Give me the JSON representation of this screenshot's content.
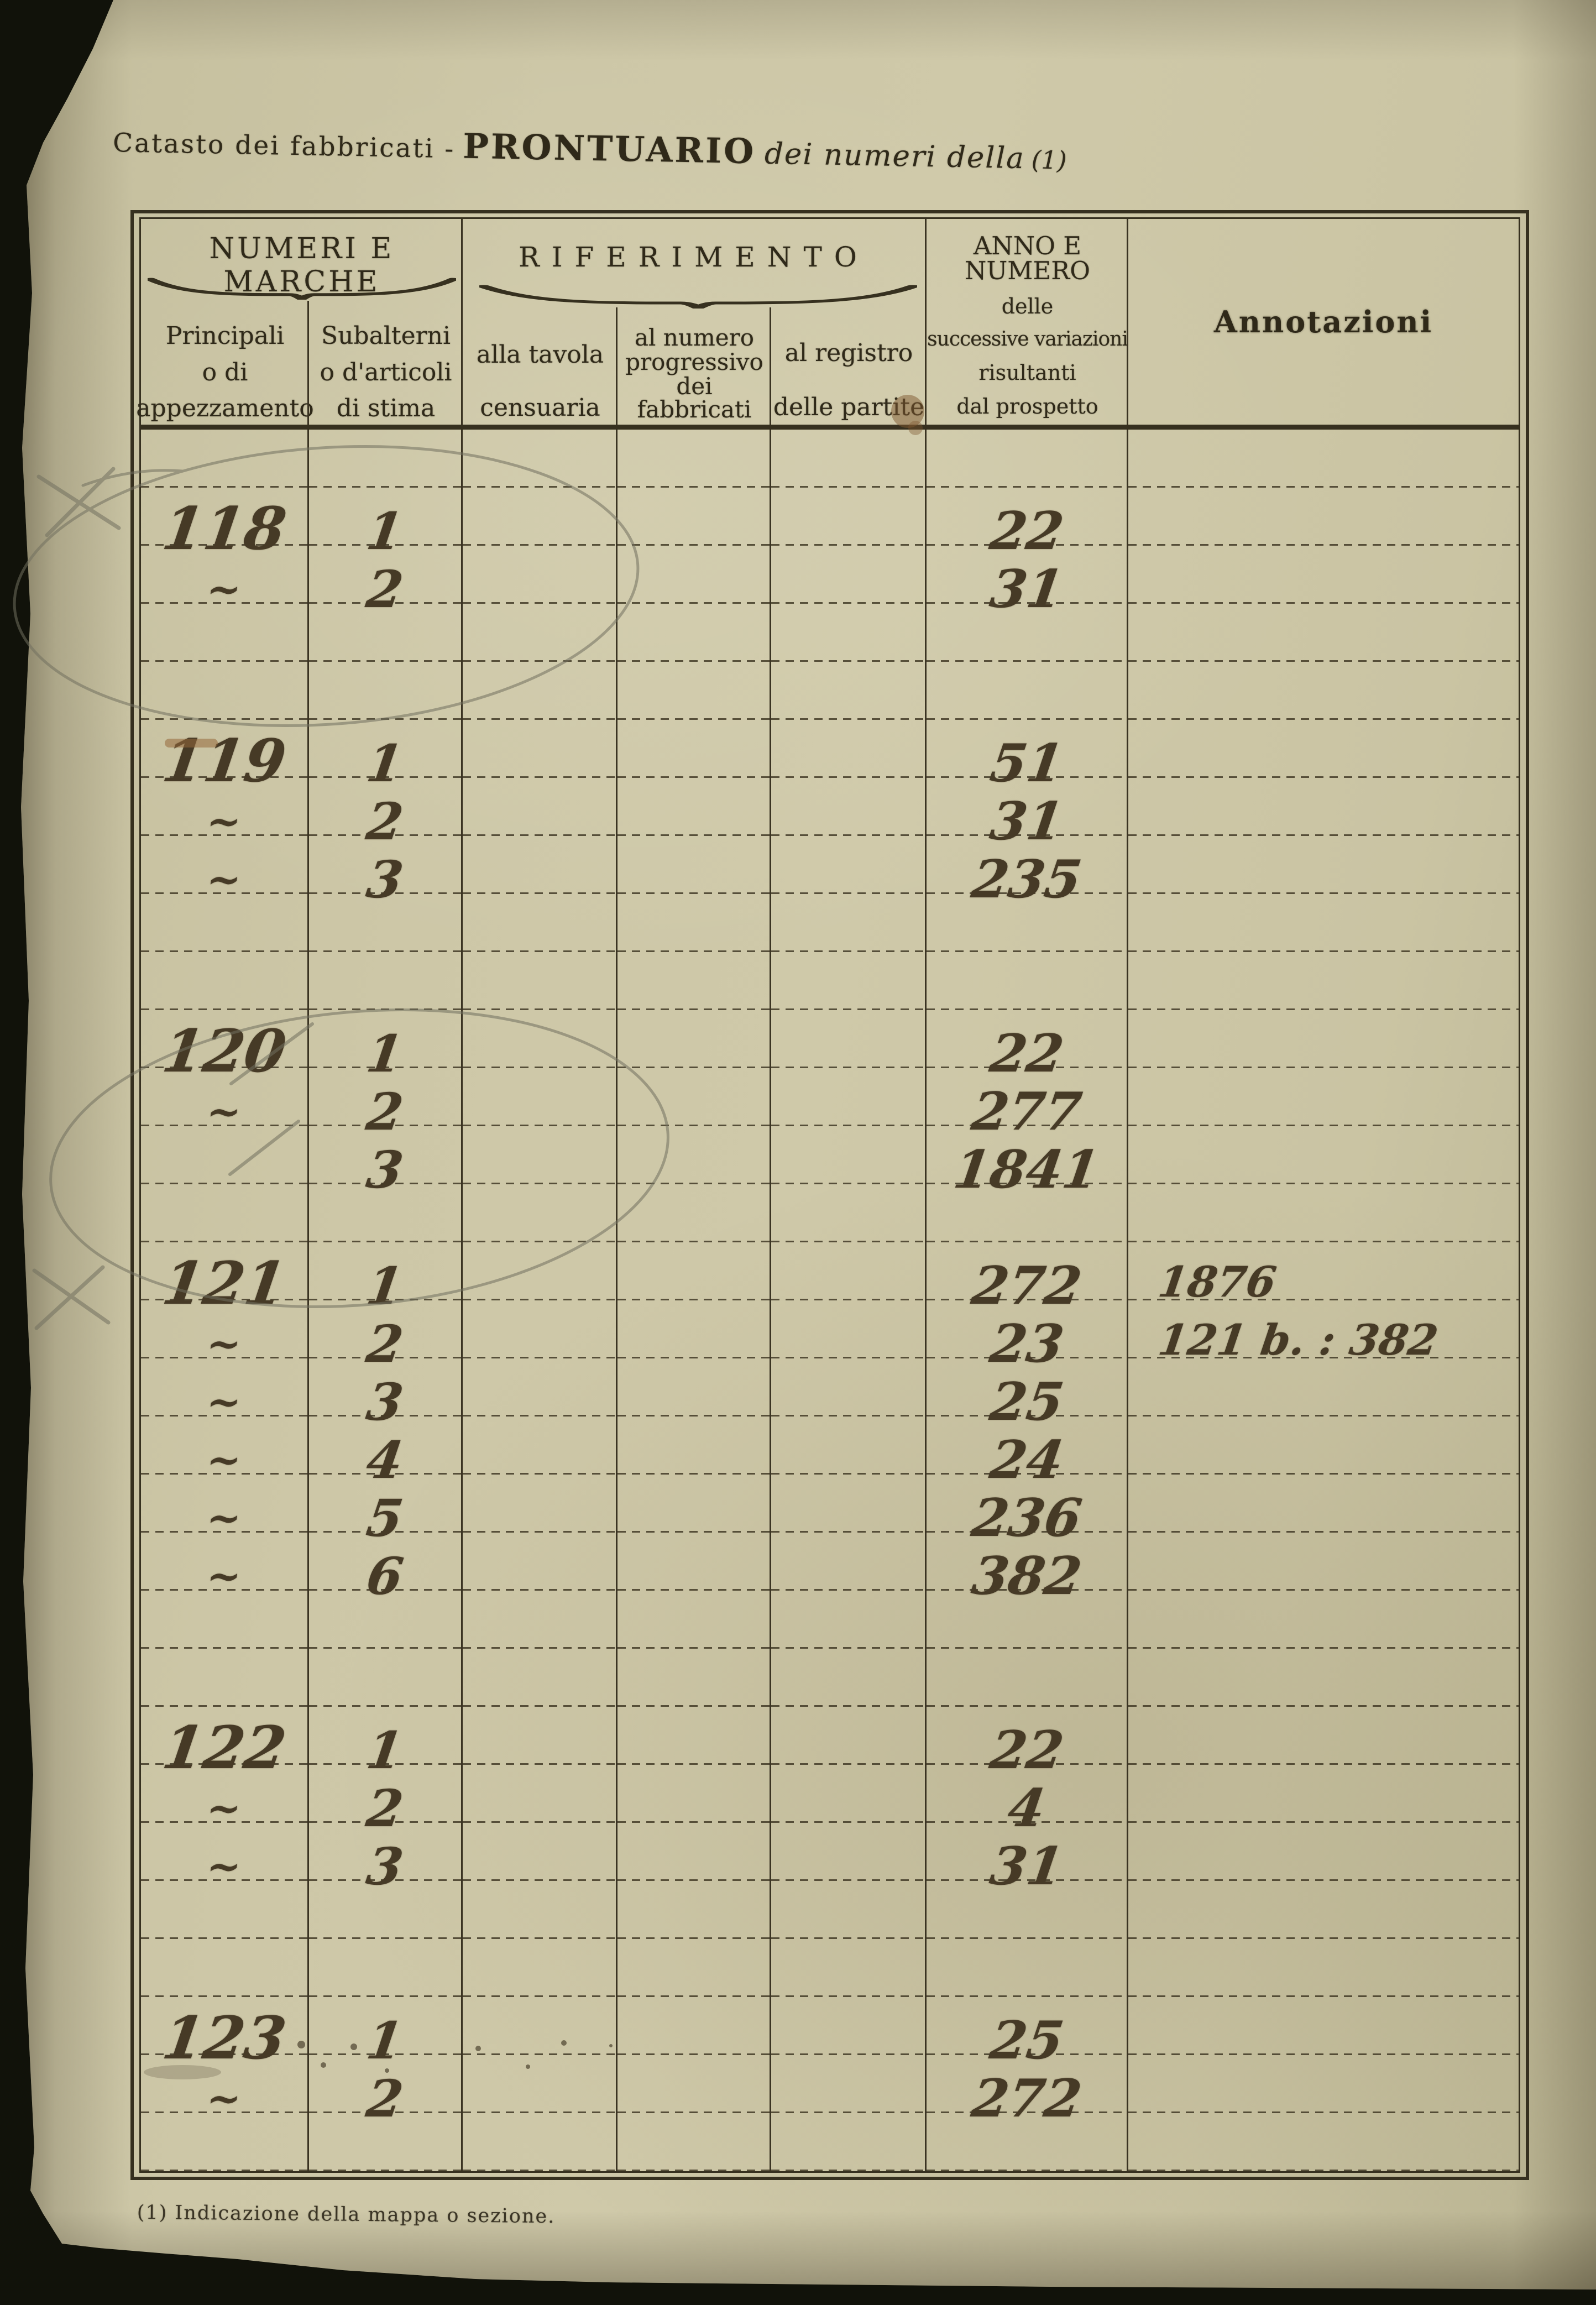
{
  "page": {
    "title": {
      "prefix": "Catasto dei fabbricati -",
      "main": "PRONTUARIO",
      "italic": "dei numeri della",
      "note_ref": "(1)"
    },
    "footnote": "(1) Indicazione della mappa o sezione."
  },
  "colors": {
    "paper": "#cfc9a9",
    "ink_print": "#2f2919",
    "ink_hand": "#463a26",
    "pencil": "#72705f",
    "background": "#11120a"
  },
  "table": {
    "group_headers": {
      "numeri": "NUMERI E MARCHE",
      "riferimento": "RIFERIMENTO"
    },
    "subheaders": {
      "principali": [
        "Principali",
        "o di",
        "appezzamento"
      ],
      "subalterni": [
        "Subalterni",
        "o d'articoli",
        "di stima"
      ],
      "tavola": [
        "alla tavola",
        "censuaria"
      ],
      "numero": [
        "al numero",
        "progressivo",
        "dei fabbricati"
      ],
      "registro": [
        "al registro",
        "delle partite"
      ]
    },
    "anno_header": [
      "ANNO E NUMERO",
      "delle",
      "successive variazioni",
      "risultanti",
      "dal prospetto"
    ],
    "annotazioni_header": "Annotazioni",
    "rows": [
      {},
      {
        "principale": "118",
        "subalterno": "1",
        "anno": "22"
      },
      {
        "principale": "~",
        "subalterno": "2",
        "anno": "31"
      },
      {},
      {},
      {
        "principale": "119",
        "subalterno": "1",
        "anno": "51"
      },
      {
        "principale": "~",
        "subalterno": "2",
        "anno": "31"
      },
      {
        "principale": "~",
        "subalterno": "3",
        "anno": "235"
      },
      {},
      {},
      {
        "principale": "120",
        "subalterno": "1",
        "anno": "22"
      },
      {
        "principale": "~",
        "subalterno": "2",
        "anno": "277"
      },
      {
        "subalterno": "3",
        "anno": "1841"
      },
      {},
      {
        "principale": "121",
        "subalterno": "1",
        "anno": "272",
        "annotazione": "1876"
      },
      {
        "principale": "~",
        "subalterno": "2",
        "anno": "23",
        "annotazione": "121 b. : 382"
      },
      {
        "principale": "~",
        "subalterno": "3",
        "anno": "25"
      },
      {
        "principale": "~",
        "subalterno": "4",
        "anno": "24"
      },
      {
        "principale": "~",
        "subalterno": "5",
        "anno": "236"
      },
      {
        "principale": "~",
        "subalterno": "6",
        "anno": "382"
      },
      {},
      {},
      {
        "principale": "122",
        "subalterno": "1",
        "anno": "22"
      },
      {
        "principale": "~",
        "subalterno": "2",
        "anno": "4"
      },
      {
        "principale": "~",
        "subalterno": "3",
        "anno": "31"
      },
      {},
      {},
      {
        "principale": "123",
        "subalterno": "1",
        "anno": "25"
      },
      {
        "principale": "~",
        "subalterno": "2",
        "anno": "272"
      },
      {}
    ]
  }
}
